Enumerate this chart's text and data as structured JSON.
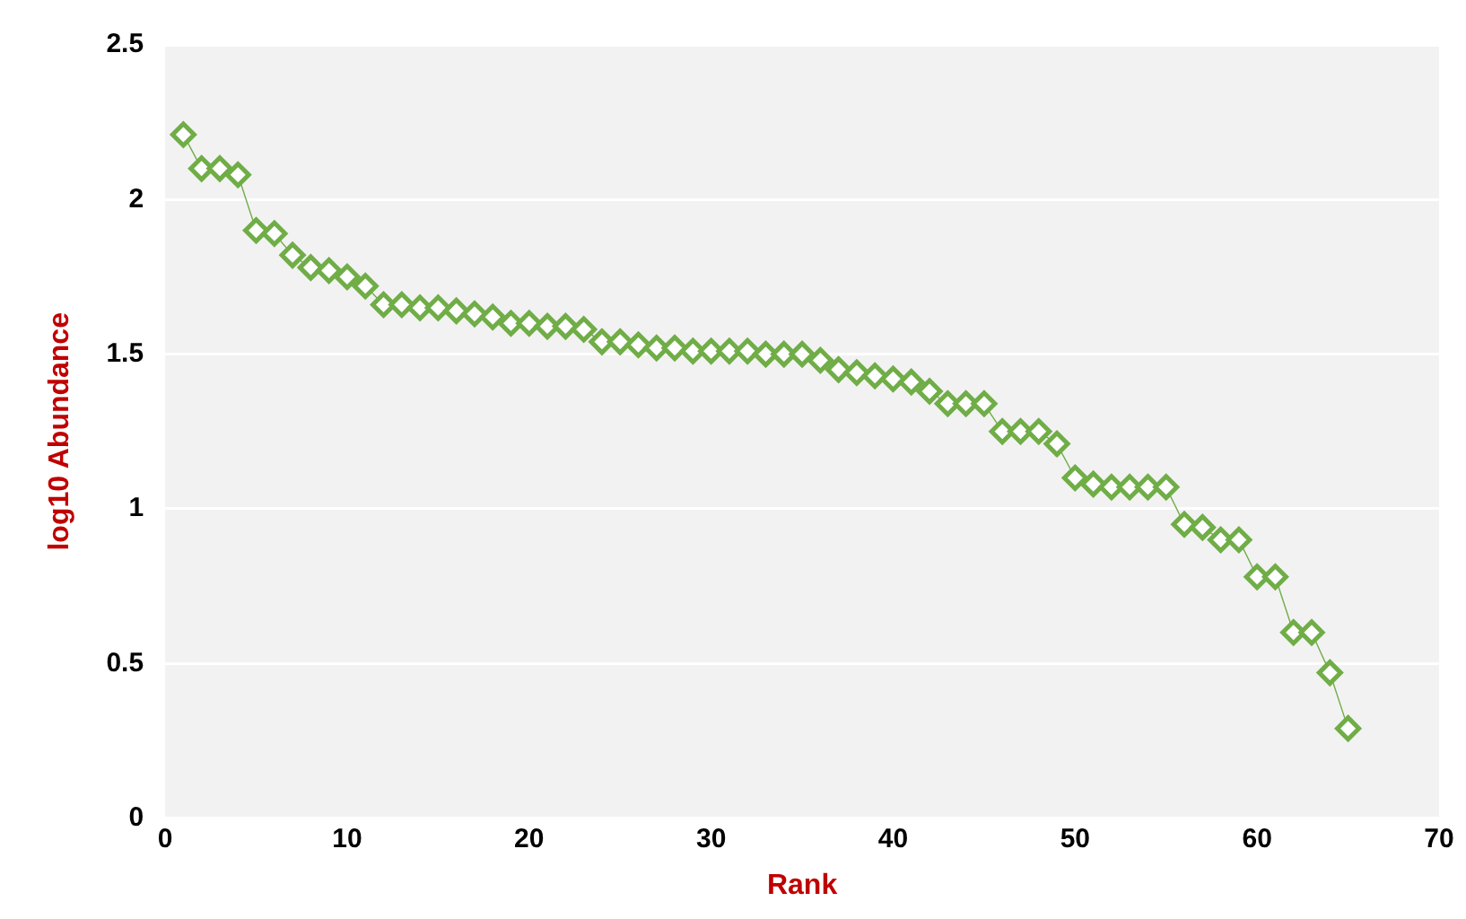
{
  "chart_data": {
    "type": "line",
    "xlabel": "Rank",
    "ylabel": "log10 Abundance",
    "marker": "diamond",
    "grid": "y",
    "legend": false,
    "x": [
      1,
      2,
      3,
      4,
      5,
      6,
      7,
      8,
      9,
      10,
      11,
      12,
      13,
      14,
      15,
      16,
      17,
      18,
      19,
      20,
      21,
      22,
      23,
      24,
      25,
      26,
      27,
      28,
      29,
      30,
      31,
      32,
      33,
      34,
      35,
      36,
      37,
      38,
      39,
      40,
      41,
      42,
      43,
      44,
      45,
      46,
      47,
      48,
      49,
      50,
      51,
      52,
      53,
      54,
      55,
      56,
      57,
      58,
      59,
      60,
      61,
      62,
      63,
      64,
      65
    ],
    "xlim": [
      0,
      70
    ],
    "xticks": [
      0,
      10,
      20,
      30,
      40,
      50,
      60,
      70
    ],
    "ylim": [
      0,
      2.5
    ],
    "yticks": [
      0,
      0.5,
      1,
      1.5,
      2,
      2.5
    ],
    "series": [
      {
        "color": "#70ad47",
        "values": [
          2.21,
          2.1,
          2.1,
          2.08,
          1.9,
          1.89,
          1.82,
          1.78,
          1.77,
          1.75,
          1.72,
          1.66,
          1.66,
          1.65,
          1.65,
          1.64,
          1.63,
          1.62,
          1.6,
          1.6,
          1.59,
          1.59,
          1.58,
          1.54,
          1.54,
          1.53,
          1.52,
          1.52,
          1.51,
          1.51,
          1.51,
          1.51,
          1.5,
          1.5,
          1.5,
          1.48,
          1.45,
          1.44,
          1.43,
          1.42,
          1.41,
          1.38,
          1.34,
          1.34,
          1.34,
          1.25,
          1.25,
          1.25,
          1.21,
          1.1,
          1.08,
          1.07,
          1.07,
          1.07,
          1.07,
          0.95,
          0.94,
          0.9,
          0.9,
          0.78,
          0.78,
          0.6,
          0.6,
          0.47,
          0.29
        ]
      }
    ]
  }
}
